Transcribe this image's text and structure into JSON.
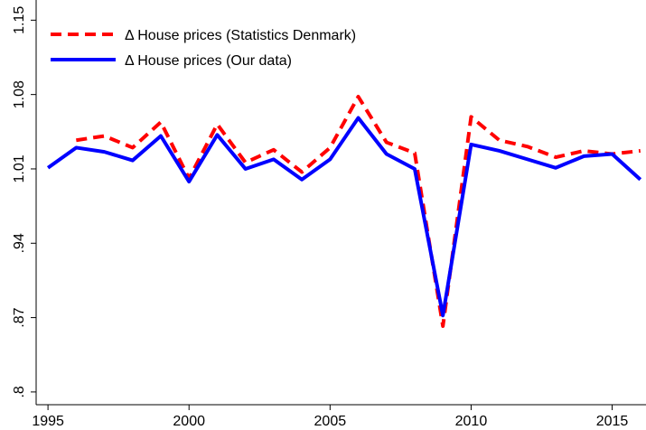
{
  "chart_data": {
    "type": "line",
    "x": [
      1995,
      1996,
      1997,
      1998,
      1999,
      2000,
      2001,
      2002,
      2003,
      2004,
      2005,
      2006,
      2007,
      2008,
      2009,
      2010,
      2011,
      2012,
      2013,
      2014,
      2015,
      2016
    ],
    "series": [
      {
        "name": "Δ House prices (Statistics Denmark)",
        "color": "#ff0000",
        "dashed": true,
        "values": [
          null,
          1.037,
          1.041,
          1.03,
          1.054,
          1.001,
          1.052,
          1.016,
          1.028,
          1.007,
          1.03,
          1.078,
          1.035,
          1.025,
          0.862,
          1.059,
          1.037,
          1.031,
          1.021,
          1.027,
          1.024,
          1.027
        ]
      },
      {
        "name": "Δ House prices (Our data)",
        "color": "#0000ff",
        "dashed": false,
        "values": [
          1.011,
          1.03,
          1.026,
          1.018,
          1.041,
          0.998,
          1.042,
          1.01,
          1.019,
          1.0,
          1.019,
          1.058,
          1.024,
          1.01,
          0.872,
          1.033,
          1.027,
          1.019,
          1.011,
          1.022,
          1.024,
          1.0
        ]
      }
    ],
    "xlim": [
      1994.58,
      2016.2
    ],
    "xticks": [
      1995,
      2000,
      2005,
      2010,
      2015
    ],
    "ylim": [
      0.788,
      1.169
    ],
    "yticks": [
      {
        "value": 0.8,
        "label": ".8"
      },
      {
        "value": 0.87,
        "label": ".87"
      },
      {
        "value": 0.94,
        "label": ".94"
      },
      1.01,
      1.08,
      1.15
    ],
    "legend": "top-left",
    "grid": false
  }
}
